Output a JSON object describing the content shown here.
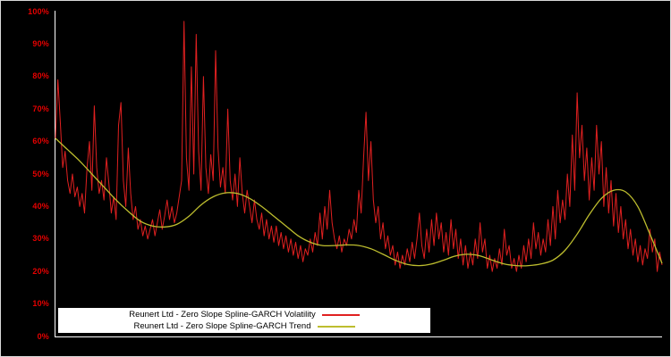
{
  "chart_data": {
    "type": "line",
    "title": "",
    "xlabel": "",
    "ylabel": "",
    "ylim": [
      0,
      100
    ],
    "grid": false,
    "background_color": "#000000",
    "axis_color": "#ffffff",
    "tick_label_color": "#e60000",
    "legend_position": "bottom-center",
    "y_tick_labels": [
      "0%",
      "10%",
      "20%",
      "30%",
      "40%",
      "50%",
      "60%",
      "70%",
      "80%",
      "90%",
      "100%"
    ],
    "x_tick_labels": [],
    "series": [
      {
        "name": "Reunert Ltd - Zero Slope Spline-GARCH Volatility",
        "color": "#e02020",
        "smooth": false,
        "stroke_width": 1,
        "values": [
          61,
          79,
          66,
          52,
          57,
          48,
          44,
          50,
          43,
          46,
          40,
          44,
          38,
          52,
          60,
          45,
          71,
          52,
          44,
          48,
          42,
          55,
          47,
          38,
          43,
          36,
          65,
          72,
          48,
          40,
          58,
          44,
          36,
          40,
          33,
          36,
          31,
          34,
          30,
          33,
          36,
          31,
          35,
          39,
          33,
          37,
          42,
          36,
          40,
          35,
          38,
          43,
          48,
          97,
          55,
          45,
          83,
          50,
          93,
          57,
          45,
          80,
          52,
          44,
          56,
          48,
          88,
          58,
          46,
          52,
          44,
          70,
          48,
          42,
          50,
          40,
          55,
          44,
          38,
          45,
          40,
          35,
          42,
          36,
          33,
          38,
          31,
          36,
          30,
          34,
          29,
          34,
          28,
          32,
          27,
          31,
          26,
          30,
          25,
          29,
          24,
          28,
          23,
          27,
          25,
          30,
          26,
          32,
          28,
          38,
          30,
          40,
          33,
          45,
          35,
          30,
          27,
          31,
          26,
          30,
          28,
          33,
          30,
          36,
          32,
          45,
          38,
          55,
          69,
          48,
          60,
          42,
          35,
          40,
          30,
          35,
          27,
          31,
          25,
          28,
          22,
          26,
          21,
          25,
          22,
          27,
          23,
          29,
          24,
          30,
          38,
          28,
          24,
          33,
          26,
          36,
          28,
          38,
          30,
          35,
          26,
          32,
          25,
          36,
          27,
          33,
          24,
          30,
          22,
          28,
          21,
          26,
          22,
          30,
          24,
          35,
          26,
          30,
          21,
          25,
          20,
          24,
          21,
          27,
          22,
          33,
          25,
          28,
          21,
          24,
          20,
          25,
          21,
          28,
          23,
          30,
          24,
          35,
          27,
          32,
          25,
          30,
          26,
          36,
          28,
          40,
          30,
          45,
          35,
          42,
          36,
          50,
          40,
          62,
          45,
          75,
          55,
          65,
          48,
          58,
          42,
          55,
          45,
          65,
          50,
          60,
          40,
          52,
          38,
          48,
          34,
          44,
          32,
          40,
          30,
          36,
          27,
          33,
          25,
          30,
          23,
          28,
          22,
          27,
          24,
          33,
          26,
          30,
          20,
          26,
          22
        ]
      },
      {
        "name": "Reunert Ltd - Zero Slope Spline-GARCH Trend",
        "color": "#bdbd2e",
        "smooth": true,
        "stroke_width": 1.3,
        "values": [
          61,
          57.5,
          54,
          50,
          46,
          42,
          38.5,
          35.5,
          34,
          33.7,
          34.5,
          37,
          40.5,
          43,
          44.2,
          44,
          42.5,
          40,
          37,
          34,
          31,
          29,
          28,
          28,
          28.2,
          28,
          27,
          25.3,
          23.5,
          22.2,
          21.8,
          22.3,
          23.5,
          24.8,
          25.3,
          24.8,
          23.5,
          22.3,
          21.8,
          21.8,
          22.3,
          23.5,
          26.5,
          31.5,
          37.5,
          42.5,
          45,
          44.5,
          40,
          31.5,
          22.5
        ]
      }
    ]
  }
}
